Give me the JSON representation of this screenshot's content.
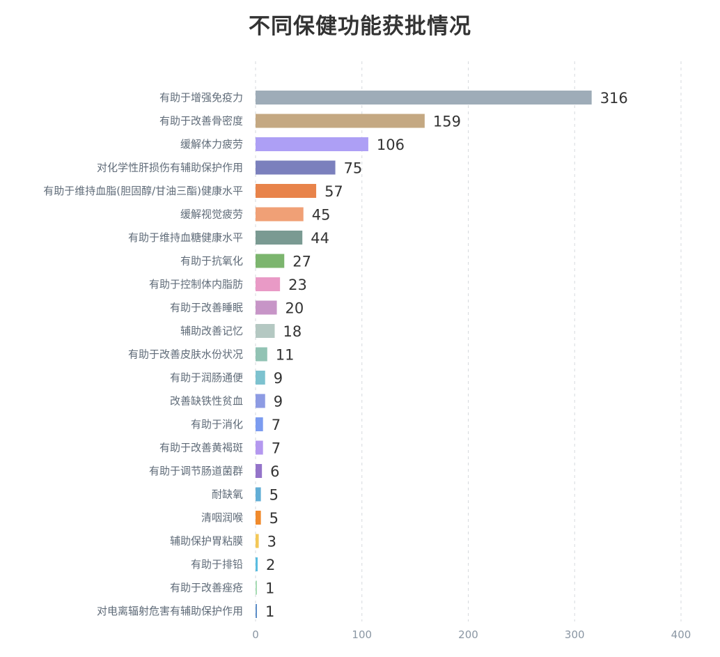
{
  "chart_data": {
    "type": "bar",
    "orientation": "horizontal",
    "title": "不同保健功能获批情况",
    "xlabel": "",
    "ylabel": "",
    "xlim": [
      0,
      400
    ],
    "ticks": [
      0,
      100,
      200,
      300,
      400
    ],
    "grid": "vertical dashed",
    "categories": [
      "有助于增强免疫力",
      "有助于改善骨密度",
      "缓解体力疲劳",
      "对化学性肝损伤有辅助保护作用",
      "有助于维持血脂(胆固醇/甘油三酯)健康水平",
      "缓解视觉疲劳",
      "有助于维持血糖健康水平",
      "有助于抗氧化",
      "有助于控制体内脂肪",
      "有助于改善睡眠",
      "辅助改善记忆",
      "有助于改善皮肤水份状况",
      "有助于润肠通便",
      "改善缺铁性贫血",
      "有助于消化",
      "有助于改善黄褐斑",
      "有助于调节肠道菌群",
      "耐缺氧",
      "清咽润喉",
      "辅助保护胃粘膜",
      "有助于排铅",
      "有助于改善痤疮",
      "对电离辐射危害有辅助保护作用"
    ],
    "values": [
      316,
      159,
      106,
      75,
      57,
      45,
      44,
      27,
      23,
      20,
      18,
      11,
      9,
      9,
      7,
      7,
      6,
      5,
      5,
      3,
      2,
      1,
      1
    ],
    "colors": [
      "#9eacb8",
      "#c4a882",
      "#ad9ff5",
      "#7b80bd",
      "#e8834a",
      "#f0a076",
      "#7a9a92",
      "#7cb56e",
      "#e99ac6",
      "#c795c7",
      "#b4c8c2",
      "#92c3b4",
      "#7dc2cf",
      "#8d9be3",
      "#7c9cf0",
      "#b498ef",
      "#9474c9",
      "#62aed6",
      "#f08a2c",
      "#f3c858",
      "#59bce0",
      "#a7dcb4",
      "#5d8ec8"
    ]
  }
}
